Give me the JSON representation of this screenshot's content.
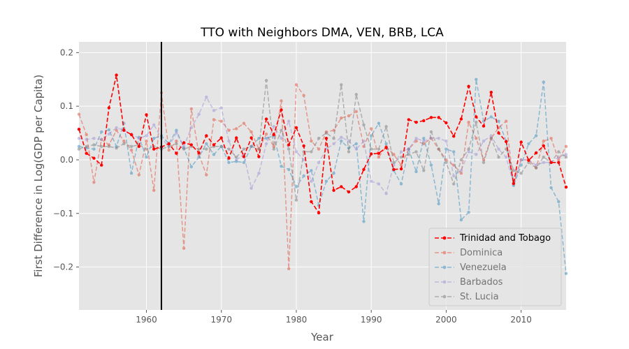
{
  "chart_data": {
    "type": "line",
    "title": "TTO with Neighbors DMA, VEN, BRB, LCA",
    "xlabel": "Year",
    "ylabel": "First Difference in Log(GDP per Capita)",
    "xlim": [
      1951,
      2016
    ],
    "ylim": [
      -0.28,
      0.22
    ],
    "xticks": [
      1960,
      1970,
      1980,
      1990,
      2000,
      2010
    ],
    "yticks": [
      -0.2,
      -0.1,
      0.0,
      0.1,
      0.2
    ],
    "ytick_labels": [
      "−0.2",
      "−0.1",
      "0.0",
      "0.1",
      "0.2"
    ],
    "grid": true,
    "legend_position": "lower-right",
    "vline_x": 1962,
    "x": [
      1951,
      1952,
      1953,
      1954,
      1955,
      1956,
      1957,
      1958,
      1959,
      1960,
      1961,
      1962,
      1963,
      1964,
      1965,
      1966,
      1967,
      1968,
      1969,
      1970,
      1971,
      1972,
      1973,
      1974,
      1975,
      1976,
      1977,
      1978,
      1979,
      1980,
      1981,
      1982,
      1983,
      1984,
      1985,
      1986,
      1987,
      1988,
      1989,
      1990,
      1991,
      1992,
      1993,
      1994,
      1995,
      1996,
      1997,
      1998,
      1999,
      2000,
      2001,
      2002,
      2003,
      2004,
      2005,
      2006,
      2007,
      2008,
      2009,
      2010,
      2011,
      2012,
      2013,
      2014,
      2015,
      2016
    ],
    "series": [
      {
        "name": "Trinidad and Tobago",
        "color": "#ff0000",
        "alpha": 1.0,
        "values": [
          0.057,
          0.012,
          0.003,
          -0.01,
          0.097,
          0.158,
          0.055,
          0.047,
          0.025,
          0.084,
          0.02,
          0.024,
          0.03,
          0.012,
          0.032,
          0.028,
          0.013,
          0.045,
          0.028,
          0.041,
          0.003,
          0.041,
          0.006,
          0.041,
          0.006,
          0.076,
          0.047,
          0.093,
          0.028,
          0.06,
          0.026,
          -0.078,
          -0.099,
          0.04,
          -0.057,
          -0.05,
          -0.06,
          -0.05,
          -0.018,
          0.011,
          0.012,
          0.023,
          -0.018,
          -0.017,
          0.075,
          0.07,
          0.073,
          0.079,
          0.079,
          0.069,
          0.044,
          0.076,
          0.137,
          0.08,
          0.063,
          0.126,
          0.05,
          0.034,
          -0.044,
          0.033,
          -0.001,
          0.013,
          0.026,
          -0.005,
          -0.005,
          -0.051
        ]
      },
      {
        "name": "Dominica",
        "color": "#e24a33",
        "alpha": 0.5,
        "values": [
          0.085,
          0.047,
          -0.042,
          0.038,
          0.028,
          0.055,
          0.035,
          0.018,
          -0.028,
          0.035,
          -0.057,
          0.125,
          0.018,
          0.035,
          -0.165,
          0.095,
          0.01,
          -0.028,
          0.075,
          0.072,
          0.055,
          0.058,
          0.068,
          0.052,
          0.02,
          0.048,
          0.025,
          0.11,
          -0.203,
          0.14,
          0.12,
          0.035,
          0.02,
          0.052,
          0.055,
          0.078,
          0.082,
          0.09,
          0.025,
          0.058,
          0.005,
          0.025,
          0.01,
          -0.01,
          0.02,
          0.035,
          0.03,
          0.04,
          0.02,
          0.0,
          -0.01,
          -0.025,
          0.07,
          0.04,
          0.0,
          0.04,
          0.06,
          0.072,
          -0.045,
          0.0,
          0.0,
          -0.015,
          0.035,
          0.04,
          0.0,
          0.025
        ]
      },
      {
        "name": "Venezuela",
        "color": "#348abd",
        "alpha": 0.5,
        "values": [
          0.025,
          0.022,
          0.02,
          0.052,
          0.056,
          0.025,
          0.068,
          -0.025,
          0.042,
          0.005,
          0.04,
          0.045,
          0.03,
          0.055,
          0.022,
          -0.013,
          0.005,
          0.03,
          0.01,
          0.025,
          -0.005,
          -0.003,
          -0.005,
          0.025,
          0.04,
          0.04,
          0.045,
          -0.012,
          -0.018,
          -0.05,
          -0.03,
          -0.02,
          -0.085,
          -0.04,
          -0.025,
          0.035,
          0.022,
          0.03,
          -0.115,
          0.045,
          0.068,
          0.03,
          -0.02,
          -0.045,
          0.02,
          -0.022,
          0.04,
          -0.01,
          -0.082,
          0.02,
          0.015,
          -0.112,
          -0.098,
          0.15,
          0.072,
          0.08,
          0.072,
          0.035,
          -0.048,
          -0.01,
          0.03,
          0.045,
          0.145,
          -0.052,
          -0.078,
          -0.212
        ]
      },
      {
        "name": "Barbados",
        "color": "#988ed5",
        "alpha": 0.5,
        "values": [
          0.04,
          0.038,
          0.04,
          0.038,
          0.048,
          0.06,
          0.055,
          0.048,
          0.04,
          0.045,
          0.065,
          0.04,
          0.025,
          0.05,
          0.025,
          0.06,
          0.085,
          0.117,
          0.092,
          0.097,
          0.035,
          0.0,
          0.01,
          -0.053,
          -0.025,
          0.03,
          0.062,
          0.04,
          0.072,
          0.015,
          0.0,
          -0.04,
          -0.005,
          0.02,
          0.03,
          0.042,
          0.035,
          0.02,
          0.035,
          -0.04,
          -0.045,
          -0.063,
          -0.01,
          0.015,
          0.02,
          0.04,
          0.035,
          0.04,
          0.04,
          0.035,
          -0.03,
          -0.02,
          0.015,
          0.01,
          0.035,
          0.045,
          0.02,
          0.005,
          -0.045,
          0.0,
          0.0,
          -0.01,
          -0.005,
          -0.005,
          0.005,
          0.01
        ]
      },
      {
        "name": "St. Lucia",
        "color": "#777777",
        "alpha": 0.5,
        "values": [
          0.02,
          0.025,
          0.028,
          0.025,
          0.025,
          0.022,
          0.03,
          0.025,
          0.028,
          0.02,
          0.025,
          0.02,
          0.025,
          0.03,
          0.02,
          0.025,
          0.02,
          0.02,
          0.025,
          0.025,
          0.02,
          0.005,
          0.02,
          0.025,
          0.02,
          0.148,
          0.02,
          0.055,
          0.02,
          -0.075,
          0.015,
          0.015,
          0.04,
          0.05,
          0.04,
          0.14,
          0.015,
          0.122,
          0.065,
          0.02,
          0.02,
          0.062,
          -0.005,
          0.005,
          0.01,
          0.015,
          -0.02,
          0.052,
          0.02,
          -0.005,
          -0.045,
          0.0,
          0.02,
          0.07,
          -0.005,
          0.04,
          0.005,
          0.02,
          -0.02,
          -0.025,
          -0.005,
          -0.015,
          0.005,
          -0.005,
          0.015,
          0.005
        ]
      }
    ]
  }
}
